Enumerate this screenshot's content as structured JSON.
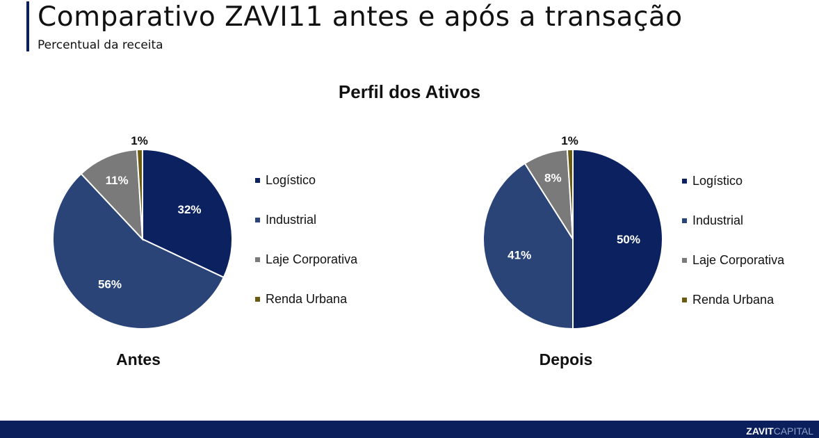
{
  "header": {
    "title": "Comparativo ZAVI11 antes e após a transação",
    "subtitle": "Percentual da receita"
  },
  "section_title": "Perfil dos Ativos",
  "chart_data": [
    {
      "type": "pie",
      "title": "Antes",
      "categories": [
        "Logístico",
        "Industrial",
        "Laje Corporativa",
        "Renda Urbana"
      ],
      "values": [
        32,
        56,
        11,
        1
      ],
      "labels": [
        "32%",
        "56%",
        "11%",
        "1%"
      ],
      "colors": [
        "#0b2160",
        "#2a4478",
        "#7a7a7a",
        "#6b5a12"
      ],
      "legend": "right"
    },
    {
      "type": "pie",
      "title": "Depois",
      "categories": [
        "Logístico",
        "Industrial",
        "Laje Corporativa",
        "Renda Urbana"
      ],
      "values": [
        50,
        41,
        8,
        1
      ],
      "labels": [
        "50%",
        "41%",
        "8%",
        "1%"
      ],
      "colors": [
        "#0b2160",
        "#2a4478",
        "#7a7a7a",
        "#6b5a12"
      ],
      "legend": "right"
    }
  ],
  "footer": {
    "brand_bold": "ZAVIT",
    "brand_light": "CAPITAL"
  }
}
